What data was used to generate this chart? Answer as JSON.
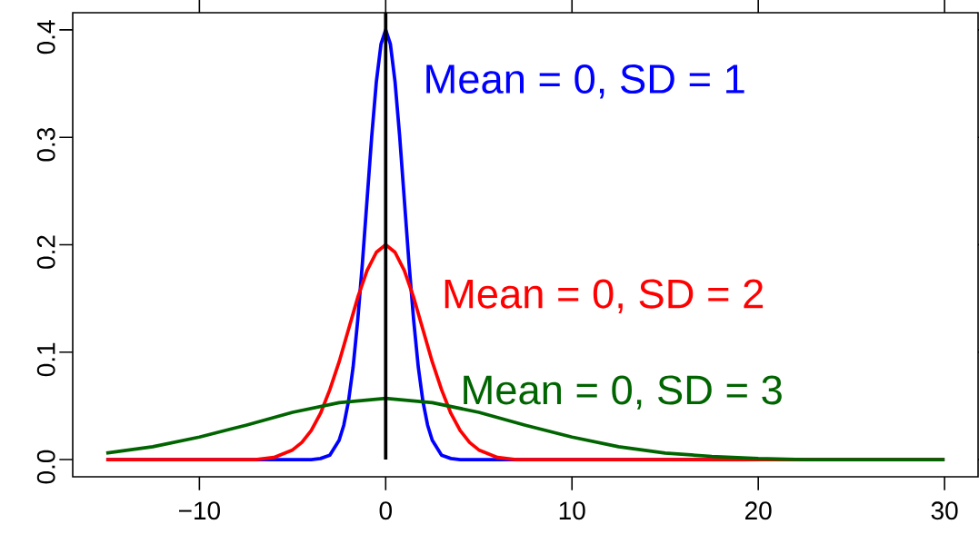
{
  "chart_data": {
    "type": "line",
    "xlim": [
      -16.8,
      31.8
    ],
    "ylim": [
      -0.016,
      0.416
    ],
    "xticks": [
      {
        "value": -10,
        "label": "−10"
      },
      0,
      10,
      20,
      30
    ],
    "yticks": [
      {
        "value": 0,
        "label": "0.0"
      },
      0.1,
      0.2,
      0.3,
      0.4
    ],
    "ref_lines": [
      {
        "axis": "x",
        "value": 0,
        "color": "#000000"
      }
    ],
    "series": [
      {
        "name": "Mean = 0, SD = 1",
        "color": "#0000ff",
        "x": [
          -15,
          -4,
          -3.5,
          -3,
          -2.5,
          -2.25,
          -2,
          -1.75,
          -1.5,
          -1.25,
          -1,
          -0.75,
          -0.5,
          -0.25,
          0,
          0.25,
          0.5,
          0.75,
          1,
          1.25,
          1.5,
          1.75,
          2,
          2.25,
          2.5,
          3,
          3.5,
          4,
          30
        ],
        "values": [
          0,
          0,
          0.001,
          0.004,
          0.018,
          0.032,
          0.054,
          0.086,
          0.13,
          0.183,
          0.242,
          0.301,
          0.352,
          0.387,
          0.4,
          0.387,
          0.352,
          0.301,
          0.242,
          0.183,
          0.13,
          0.086,
          0.054,
          0.032,
          0.018,
          0.004,
          0.001,
          0,
          0
        ]
      },
      {
        "name": "Mean = 0, SD = 2",
        "color": "#ff0000",
        "x": [
          -15,
          -8,
          -7,
          -6,
          -5,
          -4.5,
          -4,
          -3.5,
          -3,
          -2.5,
          -2,
          -1.5,
          -1,
          -0.5,
          0,
          0.5,
          1,
          1.5,
          2,
          2.5,
          3,
          3.5,
          4,
          4.5,
          5,
          6,
          7,
          8,
          30
        ],
        "values": [
          0,
          0,
          0,
          0.002,
          0.009,
          0.016,
          0.027,
          0.043,
          0.065,
          0.091,
          0.121,
          0.151,
          0.176,
          0.193,
          0.2,
          0.193,
          0.176,
          0.151,
          0.121,
          0.091,
          0.065,
          0.043,
          0.027,
          0.016,
          0.009,
          0.002,
          0,
          0,
          0
        ]
      },
      {
        "name": "Mean = 0, SD = 3",
        "color": "#006400",
        "x": [
          -15,
          -12.5,
          -10,
          -7.5,
          -5,
          -2.5,
          0,
          2.5,
          5,
          7.5,
          10,
          12.5,
          15,
          17.5,
          20,
          22.5,
          25,
          30
        ],
        "values": [
          0.006,
          0.012,
          0.021,
          0.032,
          0.044,
          0.053,
          0.057,
          0.053,
          0.044,
          0.032,
          0.021,
          0.012,
          0.006,
          0.003,
          0.001,
          0,
          0,
          0
        ]
      }
    ]
  }
}
